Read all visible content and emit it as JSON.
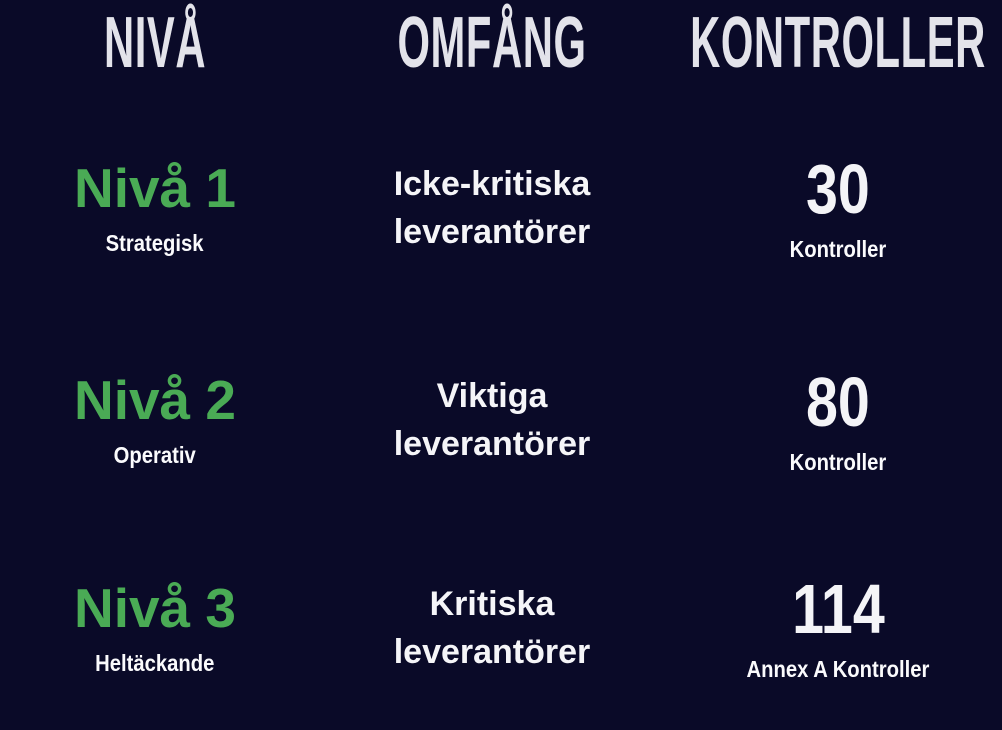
{
  "page": {
    "background_color": "#0a0a28",
    "accent_green": "#4aab55",
    "header_text_color": "#e3e3ea",
    "body_text_color": "#f5f5f8"
  },
  "table": {
    "headers": [
      {
        "label": "NIVÅ"
      },
      {
        "label": "OMFÅNG"
      },
      {
        "label": "KONTROLLER"
      }
    ],
    "rows": [
      {
        "level": "Nivå 1",
        "level_sub": "Strategisk",
        "scope_line1": "Icke-kritiska",
        "scope_line2": "leverantörer",
        "controls_value": "30",
        "controls_label": "Kontroller"
      },
      {
        "level": "Nivå 2",
        "level_sub": "Operativ",
        "scope_line1": "Viktiga",
        "scope_line2": "leverantörer",
        "controls_value": "80",
        "controls_label": "Kontroller"
      },
      {
        "level": "Nivå 3",
        "level_sub": "Heltäckande",
        "scope_line1": "Kritiska",
        "scope_line2": "leverantörer",
        "controls_value": "114",
        "controls_label": "Annex A Kontroller"
      }
    ]
  }
}
